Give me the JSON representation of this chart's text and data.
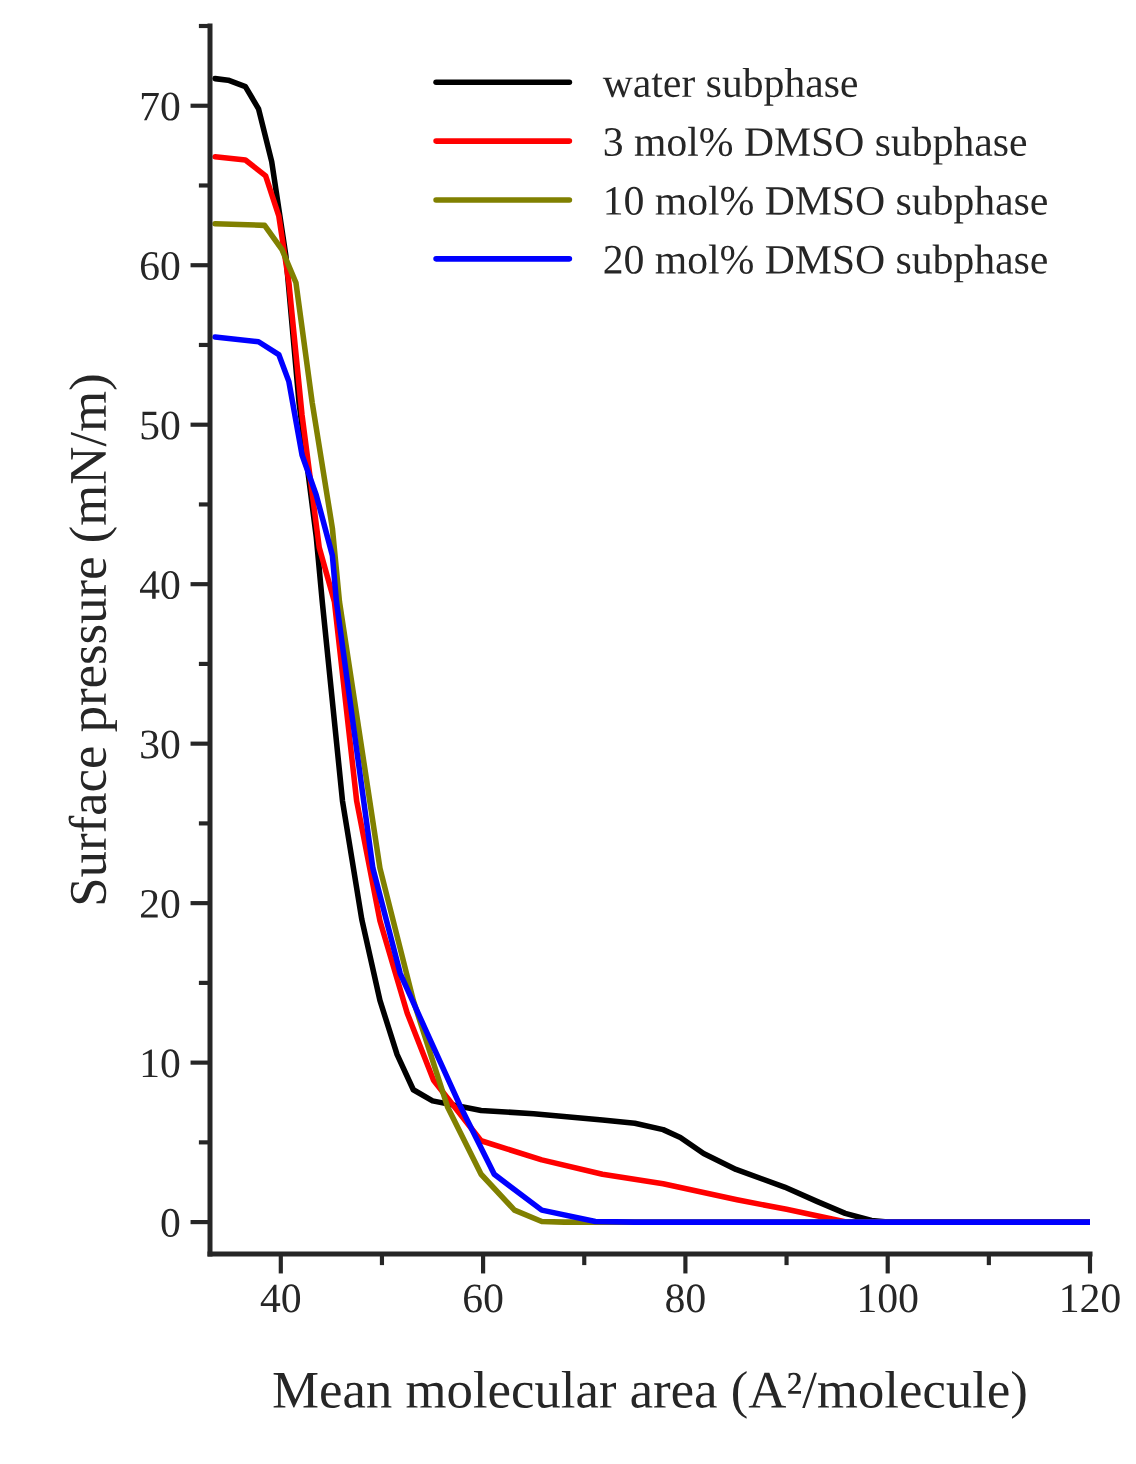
{
  "chart_data": {
    "type": "line",
    "xlabel": "Mean molecular area (A²/molecule)",
    "ylabel": "Surface pressure (mN/m)",
    "xlim": [
      33,
      120
    ],
    "ylim": [
      -2,
      75
    ],
    "xticks": [
      40,
      60,
      80,
      100,
      120
    ],
    "yticks": [
      0,
      10,
      20,
      30,
      40,
      50,
      60,
      70
    ],
    "grid": false,
    "legend": "top right",
    "marker": "none",
    "line_style": "solid",
    "series": [
      {
        "name": "water subphase",
        "color": "#000000",
        "x": [
          33.5,
          34.8,
          36.5,
          37.8,
          39.1,
          40.5,
          41.8,
          43.5,
          44.1,
          46.1,
          48,
          49.8,
          51.5,
          53.1,
          55,
          59.8,
          65,
          71.8,
          75,
          77.8,
          79.5,
          81.8,
          85,
          89.8,
          93,
          95.8,
          98.4,
          100,
          120
        ],
        "values": [
          71.7,
          71.6,
          71.2,
          69.8,
          66.5,
          60.6,
          51.4,
          43,
          38.9,
          26.4,
          19,
          13.9,
          10.5,
          8.3,
          7.6,
          7.0,
          6.8,
          6.4,
          6.2,
          5.8,
          5.3,
          4.3,
          3.3,
          2.2,
          1.3,
          0.55,
          0.1,
          0,
          0
        ]
      },
      {
        "name": "3 mol% DMSO subphase",
        "color": "#ff0000",
        "x": [
          33.5,
          36.5,
          38.5,
          39.8,
          40.8,
          42.1,
          43.8,
          45.3,
          47.5,
          49.8,
          52.5,
          55.1,
          59.8,
          65.8,
          71.8,
          77.8,
          85.1,
          90,
          94.5,
          96,
          120
        ],
        "values": [
          66.8,
          66.6,
          65.6,
          63.1,
          58.9,
          50.6,
          42.3,
          38.9,
          26.4,
          18.9,
          13.1,
          8.9,
          5.1,
          3.9,
          3.0,
          2.4,
          1.4,
          0.8,
          0.2,
          0,
          0
        ]
      },
      {
        "name": "10 mol% DMSO subphase",
        "color": "#808000",
        "x": [
          33.5,
          38.4,
          40.1,
          41.5,
          43.1,
          45.1,
          45.8,
          49.8,
          53.1,
          56.5,
          59.8,
          63.1,
          65.8,
          68,
          120
        ],
        "values": [
          62.6,
          62.5,
          61.0,
          58.9,
          51.4,
          43.5,
          38.9,
          22.2,
          13.9,
          7.2,
          3.0,
          0.75,
          0.04,
          0,
          0
        ]
      },
      {
        "name": "20 mol% DMSO subphase",
        "color": "#0000ff",
        "x": [
          33.5,
          37.8,
          39.8,
          40.8,
          42.1,
          43.5,
          45.1,
          45.5,
          49.1,
          51.8,
          54.5,
          57.8,
          61.1,
          65.8,
          71.1,
          75,
          120
        ],
        "values": [
          55.5,
          55.2,
          54.4,
          52.7,
          48.1,
          45.6,
          41.8,
          38.9,
          22.2,
          15.6,
          11.8,
          7.2,
          3.0,
          0.75,
          0.04,
          0,
          0
        ]
      }
    ]
  }
}
